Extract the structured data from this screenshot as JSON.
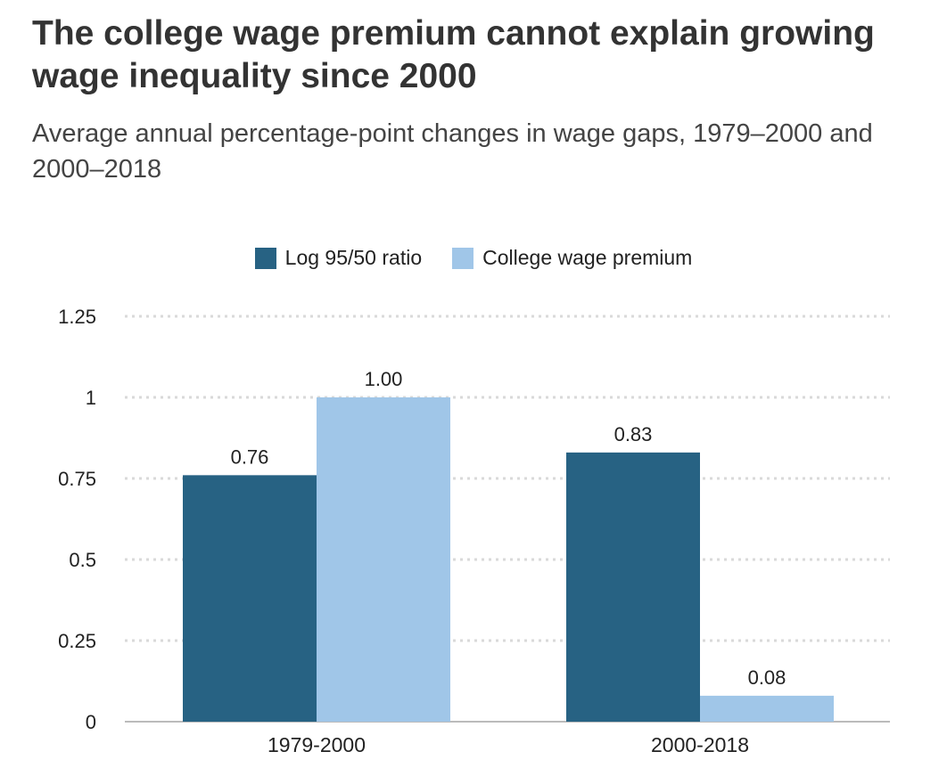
{
  "chart_data": {
    "type": "bar",
    "title": "The college wage premium cannot explain growing wage inequality since 2000",
    "subtitle": "Average annual percentage-point changes in wage gaps, 1979–2000 and 2000–2018",
    "categories": [
      "1979-2000",
      "2000-2018"
    ],
    "series": [
      {
        "name": "Log 95/50 ratio",
        "color": "#276283",
        "values": [
          0.76,
          0.83
        ],
        "labels": [
          "0.76",
          "0.83"
        ]
      },
      {
        "name": "College wage premium",
        "color": "#a0c6e8",
        "values": [
          1.0,
          0.08
        ],
        "labels": [
          "1.00",
          "0.08"
        ]
      }
    ],
    "yticks": [
      {
        "value": 0,
        "label": "0"
      },
      {
        "value": 0.25,
        "label": "0.25"
      },
      {
        "value": 0.5,
        "label": "0.5"
      },
      {
        "value": 0.75,
        "label": "0.75"
      },
      {
        "value": 1,
        "label": "1"
      },
      {
        "value": 1.25,
        "label": "1.25"
      }
    ],
    "ylim": [
      0,
      1.25
    ],
    "xlabel": "",
    "ylabel": "",
    "grid": true,
    "legend_position": "top-center"
  }
}
